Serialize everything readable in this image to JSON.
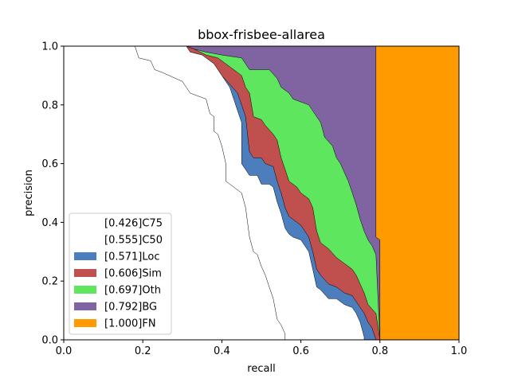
{
  "chart_data": {
    "type": "area",
    "title": "bbox-frisbee-allarea",
    "xlabel": "recall",
    "ylabel": "precision",
    "xlim": [
      0,
      1
    ],
    "ylim": [
      0,
      1
    ],
    "xticks": [
      "0.0",
      "0.2",
      "0.4",
      "0.6",
      "0.8",
      "1.0"
    ],
    "yticks": [
      "0.0",
      "0.2",
      "0.4",
      "0.6",
      "0.8",
      "1.0"
    ],
    "legend_position": "lower-left",
    "grid": false,
    "series": [
      {
        "name": "[0.426]C75",
        "color": "#ffffff",
        "points": [
          [
            0,
            1
          ],
          [
            0.18,
            1
          ],
          [
            0.19,
            0.96
          ],
          [
            0.22,
            0.95
          ],
          [
            0.23,
            0.92
          ],
          [
            0.25,
            0.91
          ],
          [
            0.3,
            0.88
          ],
          [
            0.32,
            0.84
          ],
          [
            0.36,
            0.82
          ],
          [
            0.37,
            0.77
          ],
          [
            0.38,
            0.76
          ],
          [
            0.38,
            0.71
          ],
          [
            0.39,
            0.7
          ],
          [
            0.4,
            0.66
          ],
          [
            0.41,
            0.6
          ],
          [
            0.41,
            0.54
          ],
          [
            0.43,
            0.52
          ],
          [
            0.45,
            0.5
          ],
          [
            0.46,
            0.45
          ],
          [
            0.47,
            0.35
          ],
          [
            0.48,
            0.3
          ],
          [
            0.49,
            0.29
          ],
          [
            0.5,
            0.25
          ],
          [
            0.51,
            0.22
          ],
          [
            0.52,
            0.18
          ],
          [
            0.53,
            0.14
          ],
          [
            0.54,
            0.07
          ],
          [
            0.55,
            0.05
          ],
          [
            0.56,
            0.02
          ],
          [
            0.56,
            0
          ]
        ]
      },
      {
        "name": "[0.555]C50",
        "color": "#ffffff",
        "points": [
          [
            0,
            1
          ],
          [
            0.31,
            1
          ],
          [
            0.32,
            0.98
          ],
          [
            0.35,
            0.97
          ],
          [
            0.38,
            0.94
          ],
          [
            0.4,
            0.9
          ],
          [
            0.42,
            0.86
          ],
          [
            0.43,
            0.82
          ],
          [
            0.44,
            0.78
          ],
          [
            0.45,
            0.74
          ],
          [
            0.45,
            0.6
          ],
          [
            0.46,
            0.58
          ],
          [
            0.47,
            0.56
          ],
          [
            0.49,
            0.56
          ],
          [
            0.5,
            0.53
          ],
          [
            0.52,
            0.53
          ],
          [
            0.53,
            0.52
          ],
          [
            0.54,
            0.47
          ],
          [
            0.55,
            0.43
          ],
          [
            0.56,
            0.38
          ],
          [
            0.57,
            0.36
          ],
          [
            0.58,
            0.35
          ],
          [
            0.6,
            0.34
          ],
          [
            0.61,
            0.32
          ],
          [
            0.62,
            0.3
          ],
          [
            0.63,
            0.24
          ],
          [
            0.64,
            0.18
          ],
          [
            0.65,
            0.17
          ],
          [
            0.67,
            0.14
          ],
          [
            0.69,
            0.14
          ],
          [
            0.71,
            0.12
          ],
          [
            0.73,
            0.11
          ],
          [
            0.74,
            0.09
          ],
          [
            0.75,
            0.06
          ],
          [
            0.76,
            0.01
          ],
          [
            0.76,
            0
          ]
        ]
      },
      {
        "name": "[0.571]Loc",
        "color": "#4c7dbd",
        "points": [
          [
            0,
            1
          ],
          [
            0.31,
            1
          ],
          [
            0.32,
            0.98
          ],
          [
            0.35,
            0.97
          ],
          [
            0.38,
            0.94
          ],
          [
            0.4,
            0.9
          ],
          [
            0.42,
            0.87
          ],
          [
            0.44,
            0.84
          ],
          [
            0.45,
            0.8
          ],
          [
            0.46,
            0.76
          ],
          [
            0.47,
            0.64
          ],
          [
            0.48,
            0.62
          ],
          [
            0.5,
            0.62
          ],
          [
            0.51,
            0.6
          ],
          [
            0.53,
            0.59
          ],
          [
            0.54,
            0.54
          ],
          [
            0.55,
            0.5
          ],
          [
            0.56,
            0.45
          ],
          [
            0.57,
            0.42
          ],
          [
            0.58,
            0.41
          ],
          [
            0.6,
            0.39
          ],
          [
            0.61,
            0.37
          ],
          [
            0.62,
            0.35
          ],
          [
            0.63,
            0.3
          ],
          [
            0.64,
            0.24
          ],
          [
            0.65,
            0.22
          ],
          [
            0.67,
            0.19
          ],
          [
            0.69,
            0.18
          ],
          [
            0.71,
            0.16
          ],
          [
            0.73,
            0.15
          ],
          [
            0.74,
            0.13
          ],
          [
            0.75,
            0.11
          ],
          [
            0.76,
            0.09
          ],
          [
            0.77,
            0.06
          ],
          [
            0.78,
            0.04
          ],
          [
            0.79,
            0
          ]
        ]
      },
      {
        "name": "[0.606]Sim",
        "color": "#c0504d",
        "points": [
          [
            0,
            1
          ],
          [
            0.31,
            1
          ],
          [
            0.33,
            0.99
          ],
          [
            0.36,
            0.97
          ],
          [
            0.39,
            0.96
          ],
          [
            0.42,
            0.93
          ],
          [
            0.45,
            0.9
          ],
          [
            0.46,
            0.86
          ],
          [
            0.47,
            0.84
          ],
          [
            0.48,
            0.76
          ],
          [
            0.5,
            0.75
          ],
          [
            0.51,
            0.73
          ],
          [
            0.53,
            0.7
          ],
          [
            0.54,
            0.68
          ],
          [
            0.55,
            0.62
          ],
          [
            0.56,
            0.58
          ],
          [
            0.57,
            0.54
          ],
          [
            0.59,
            0.52
          ],
          [
            0.6,
            0.5
          ],
          [
            0.62,
            0.48
          ],
          [
            0.63,
            0.45
          ],
          [
            0.64,
            0.37
          ],
          [
            0.65,
            0.33
          ],
          [
            0.67,
            0.31
          ],
          [
            0.69,
            0.28
          ],
          [
            0.71,
            0.26
          ],
          [
            0.73,
            0.24
          ],
          [
            0.74,
            0.22
          ],
          [
            0.75,
            0.19
          ],
          [
            0.76,
            0.16
          ],
          [
            0.77,
            0.12
          ],
          [
            0.79,
            0.09
          ],
          [
            0.8,
            0
          ]
        ]
      },
      {
        "name": "[0.697]Oth",
        "color": "#5ee65e",
        "points": [
          [
            0,
            1
          ],
          [
            0.31,
            1
          ],
          [
            0.33,
            0.99
          ],
          [
            0.36,
            0.98
          ],
          [
            0.4,
            0.97
          ],
          [
            0.45,
            0.96
          ],
          [
            0.47,
            0.92
          ],
          [
            0.52,
            0.92
          ],
          [
            0.54,
            0.89
          ],
          [
            0.55,
            0.86
          ],
          [
            0.57,
            0.84
          ],
          [
            0.58,
            0.82
          ],
          [
            0.6,
            0.81
          ],
          [
            0.62,
            0.8
          ],
          [
            0.64,
            0.76
          ],
          [
            0.65,
            0.74
          ],
          [
            0.66,
            0.69
          ],
          [
            0.68,
            0.66
          ],
          [
            0.69,
            0.62
          ],
          [
            0.7,
            0.6
          ],
          [
            0.71,
            0.57
          ],
          [
            0.72,
            0.54
          ],
          [
            0.73,
            0.5
          ],
          [
            0.74,
            0.46
          ],
          [
            0.75,
            0.41
          ],
          [
            0.76,
            0.37
          ],
          [
            0.77,
            0.34
          ],
          [
            0.78,
            0.32
          ],
          [
            0.79,
            0.29
          ],
          [
            0.8,
            0
          ]
        ]
      },
      {
        "name": "[0.792]BG",
        "color": "#8064a2",
        "points": [
          [
            0,
            1
          ],
          [
            0.79,
            1
          ],
          [
            0.79,
            0.35
          ],
          [
            0.8,
            0.34
          ],
          [
            0.8,
            0
          ]
        ]
      },
      {
        "name": "[1.000]FN",
        "color": "#ff9a00",
        "points": [
          [
            0,
            1
          ],
          [
            1,
            1
          ],
          [
            1,
            0
          ]
        ]
      }
    ]
  }
}
